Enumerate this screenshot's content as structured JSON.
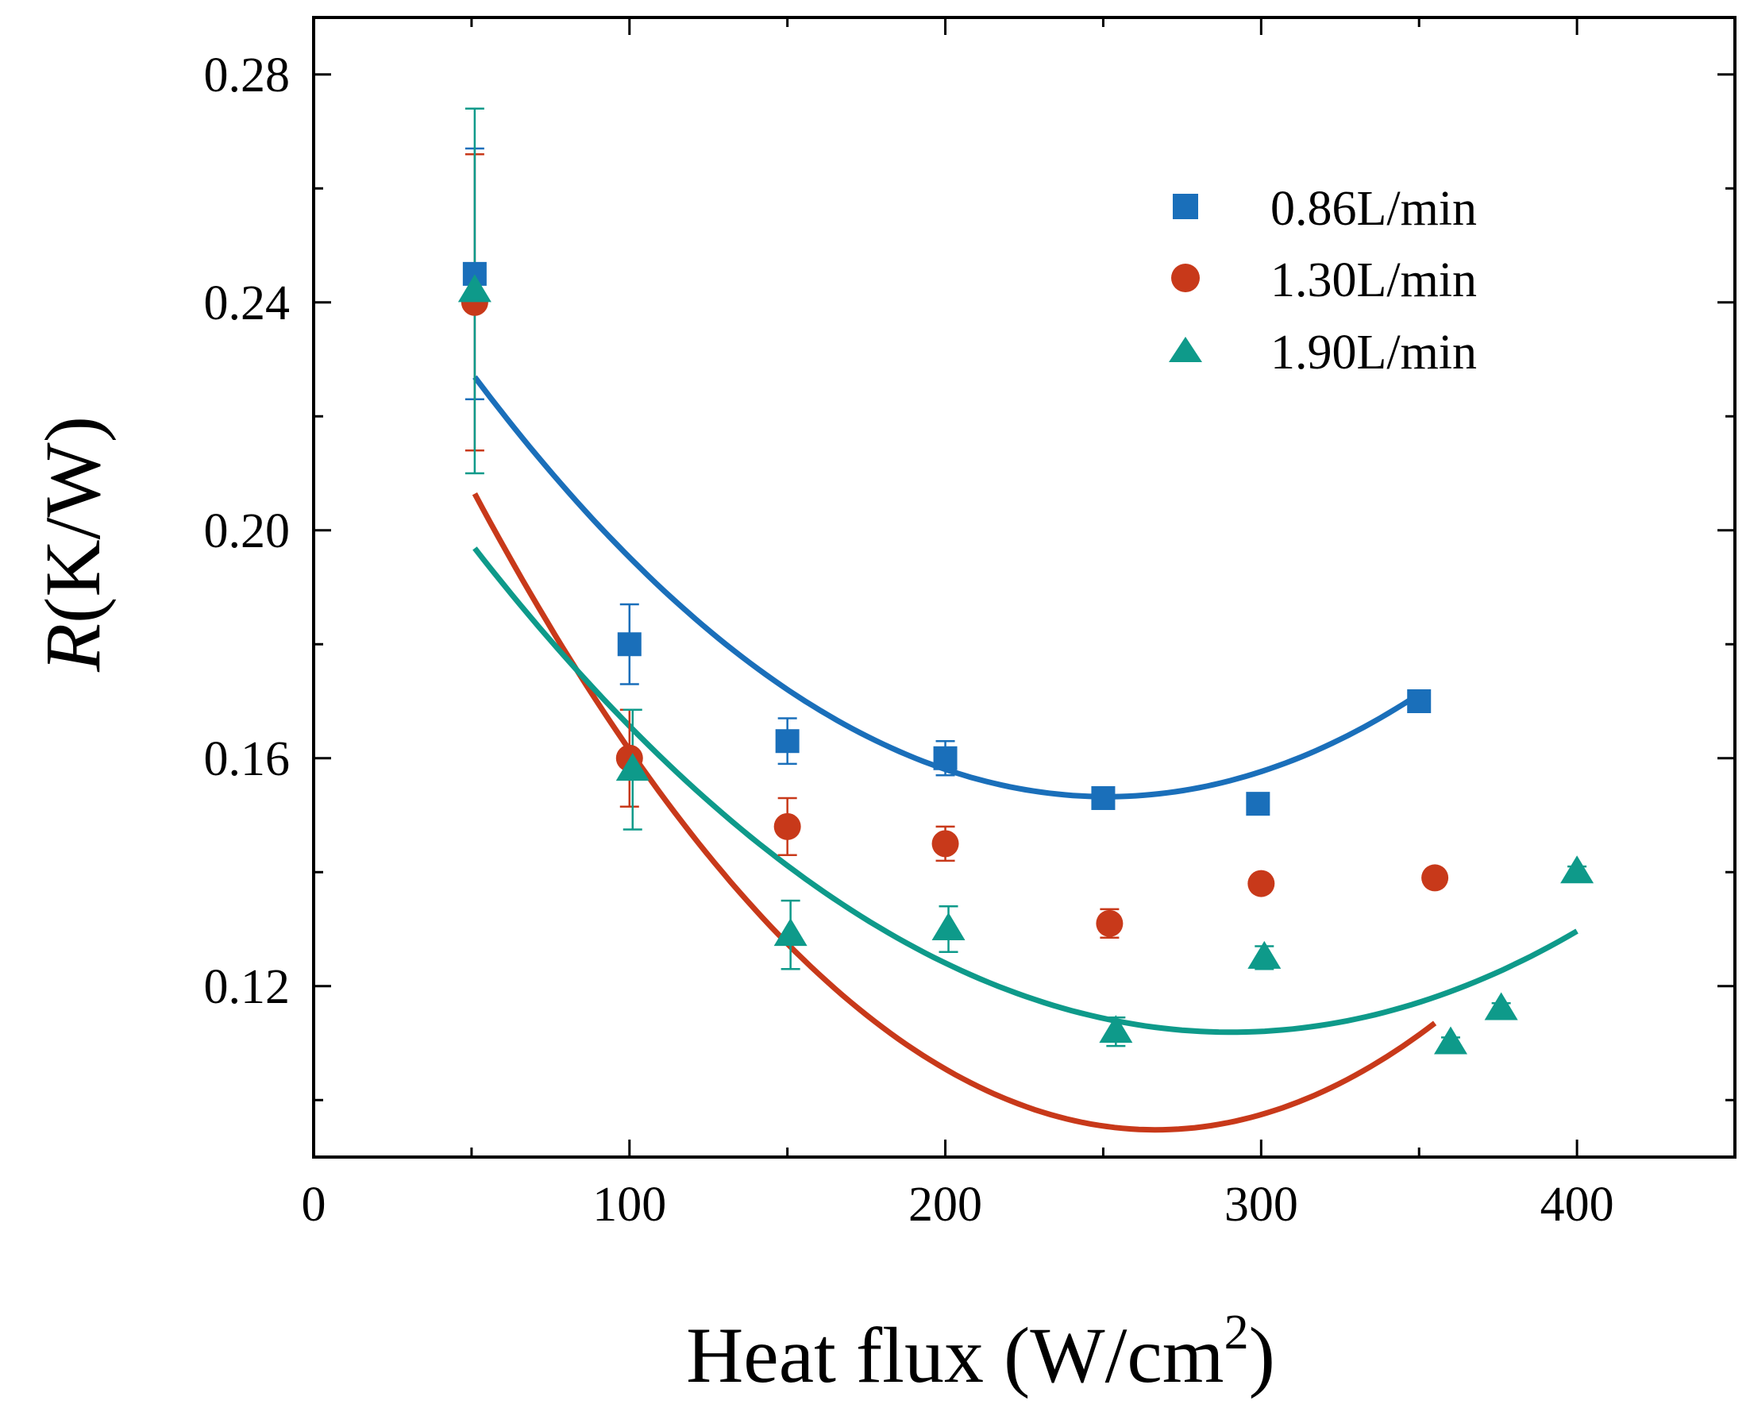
{
  "chart_data": {
    "type": "scatter",
    "title": "",
    "xlabel_main": "Heat flux (W/cm",
    "xlabel_sup": "2",
    "xlabel_close": ")",
    "ylabel_var": "R",
    "ylabel_unit": "(K/W)",
    "xlim": [
      0,
      450
    ],
    "ylim": [
      0.09,
      0.29
    ],
    "x_ticks": [
      0,
      100,
      200,
      300,
      400
    ],
    "x_tick_labels": [
      "0",
      "100",
      "200",
      "300",
      "400"
    ],
    "y_ticks": [
      0.12,
      0.16,
      0.2,
      0.24,
      0.28
    ],
    "y_tick_labels": [
      "0.12",
      "0.16",
      "0.20",
      "0.24",
      "0.28"
    ],
    "y_minor_ticks": [
      0.1,
      0.14,
      0.18,
      0.22,
      0.26
    ],
    "x_minor_ticks": [
      50,
      150,
      250,
      350
    ],
    "legend_position": "top-right",
    "series": [
      {
        "name": "0.86L/min",
        "color": "#1a6fba",
        "marker": "square",
        "x": [
          51,
          100,
          150,
          200,
          250,
          299,
          350
        ],
        "y": [
          0.245,
          0.18,
          0.163,
          0.16,
          0.153,
          0.152,
          0.17
        ],
        "err": [
          0.022,
          0.007,
          0.004,
          0.003,
          0.0015,
          0.0015,
          0.0015
        ],
        "fit": {
          "x_range": [
            51,
            350
          ],
          "coef": [
            0.26925,
            -0.000924,
            1.84e-06
          ]
        }
      },
      {
        "name": "1.30L/min",
        "color": "#c8391a",
        "marker": "circle",
        "x": [
          51,
          100,
          150,
          200,
          252,
          300,
          355
        ],
        "y": [
          0.24,
          0.16,
          0.148,
          0.145,
          0.131,
          0.138,
          0.139
        ],
        "err": [
          0.026,
          0.0085,
          0.005,
          0.003,
          0.0025,
          0.0015,
          0.0015
        ],
        "fit": {
          "x_range": [
            51,
            355
          ],
          "coef": [
            0.26545,
            -0.00128,
            2.4e-06
          ]
        }
      },
      {
        "name": "1.90L/min",
        "color": "#0e9a8a",
        "marker": "triangle",
        "x": [
          51,
          101,
          151,
          201,
          254,
          301,
          360,
          376,
          400
        ],
        "y": [
          0.242,
          0.158,
          0.129,
          0.13,
          0.112,
          0.125,
          0.11,
          0.116,
          0.14
        ],
        "err": [
          0.032,
          0.0105,
          0.006,
          0.004,
          0.0025,
          0.002,
          0.001,
          0.001,
          0.001
        ],
        "fit": {
          "x_range": [
            51,
            400
          ],
          "coef": [
            0.23685,
            -0.00086,
            1.48e-06
          ]
        }
      }
    ]
  }
}
